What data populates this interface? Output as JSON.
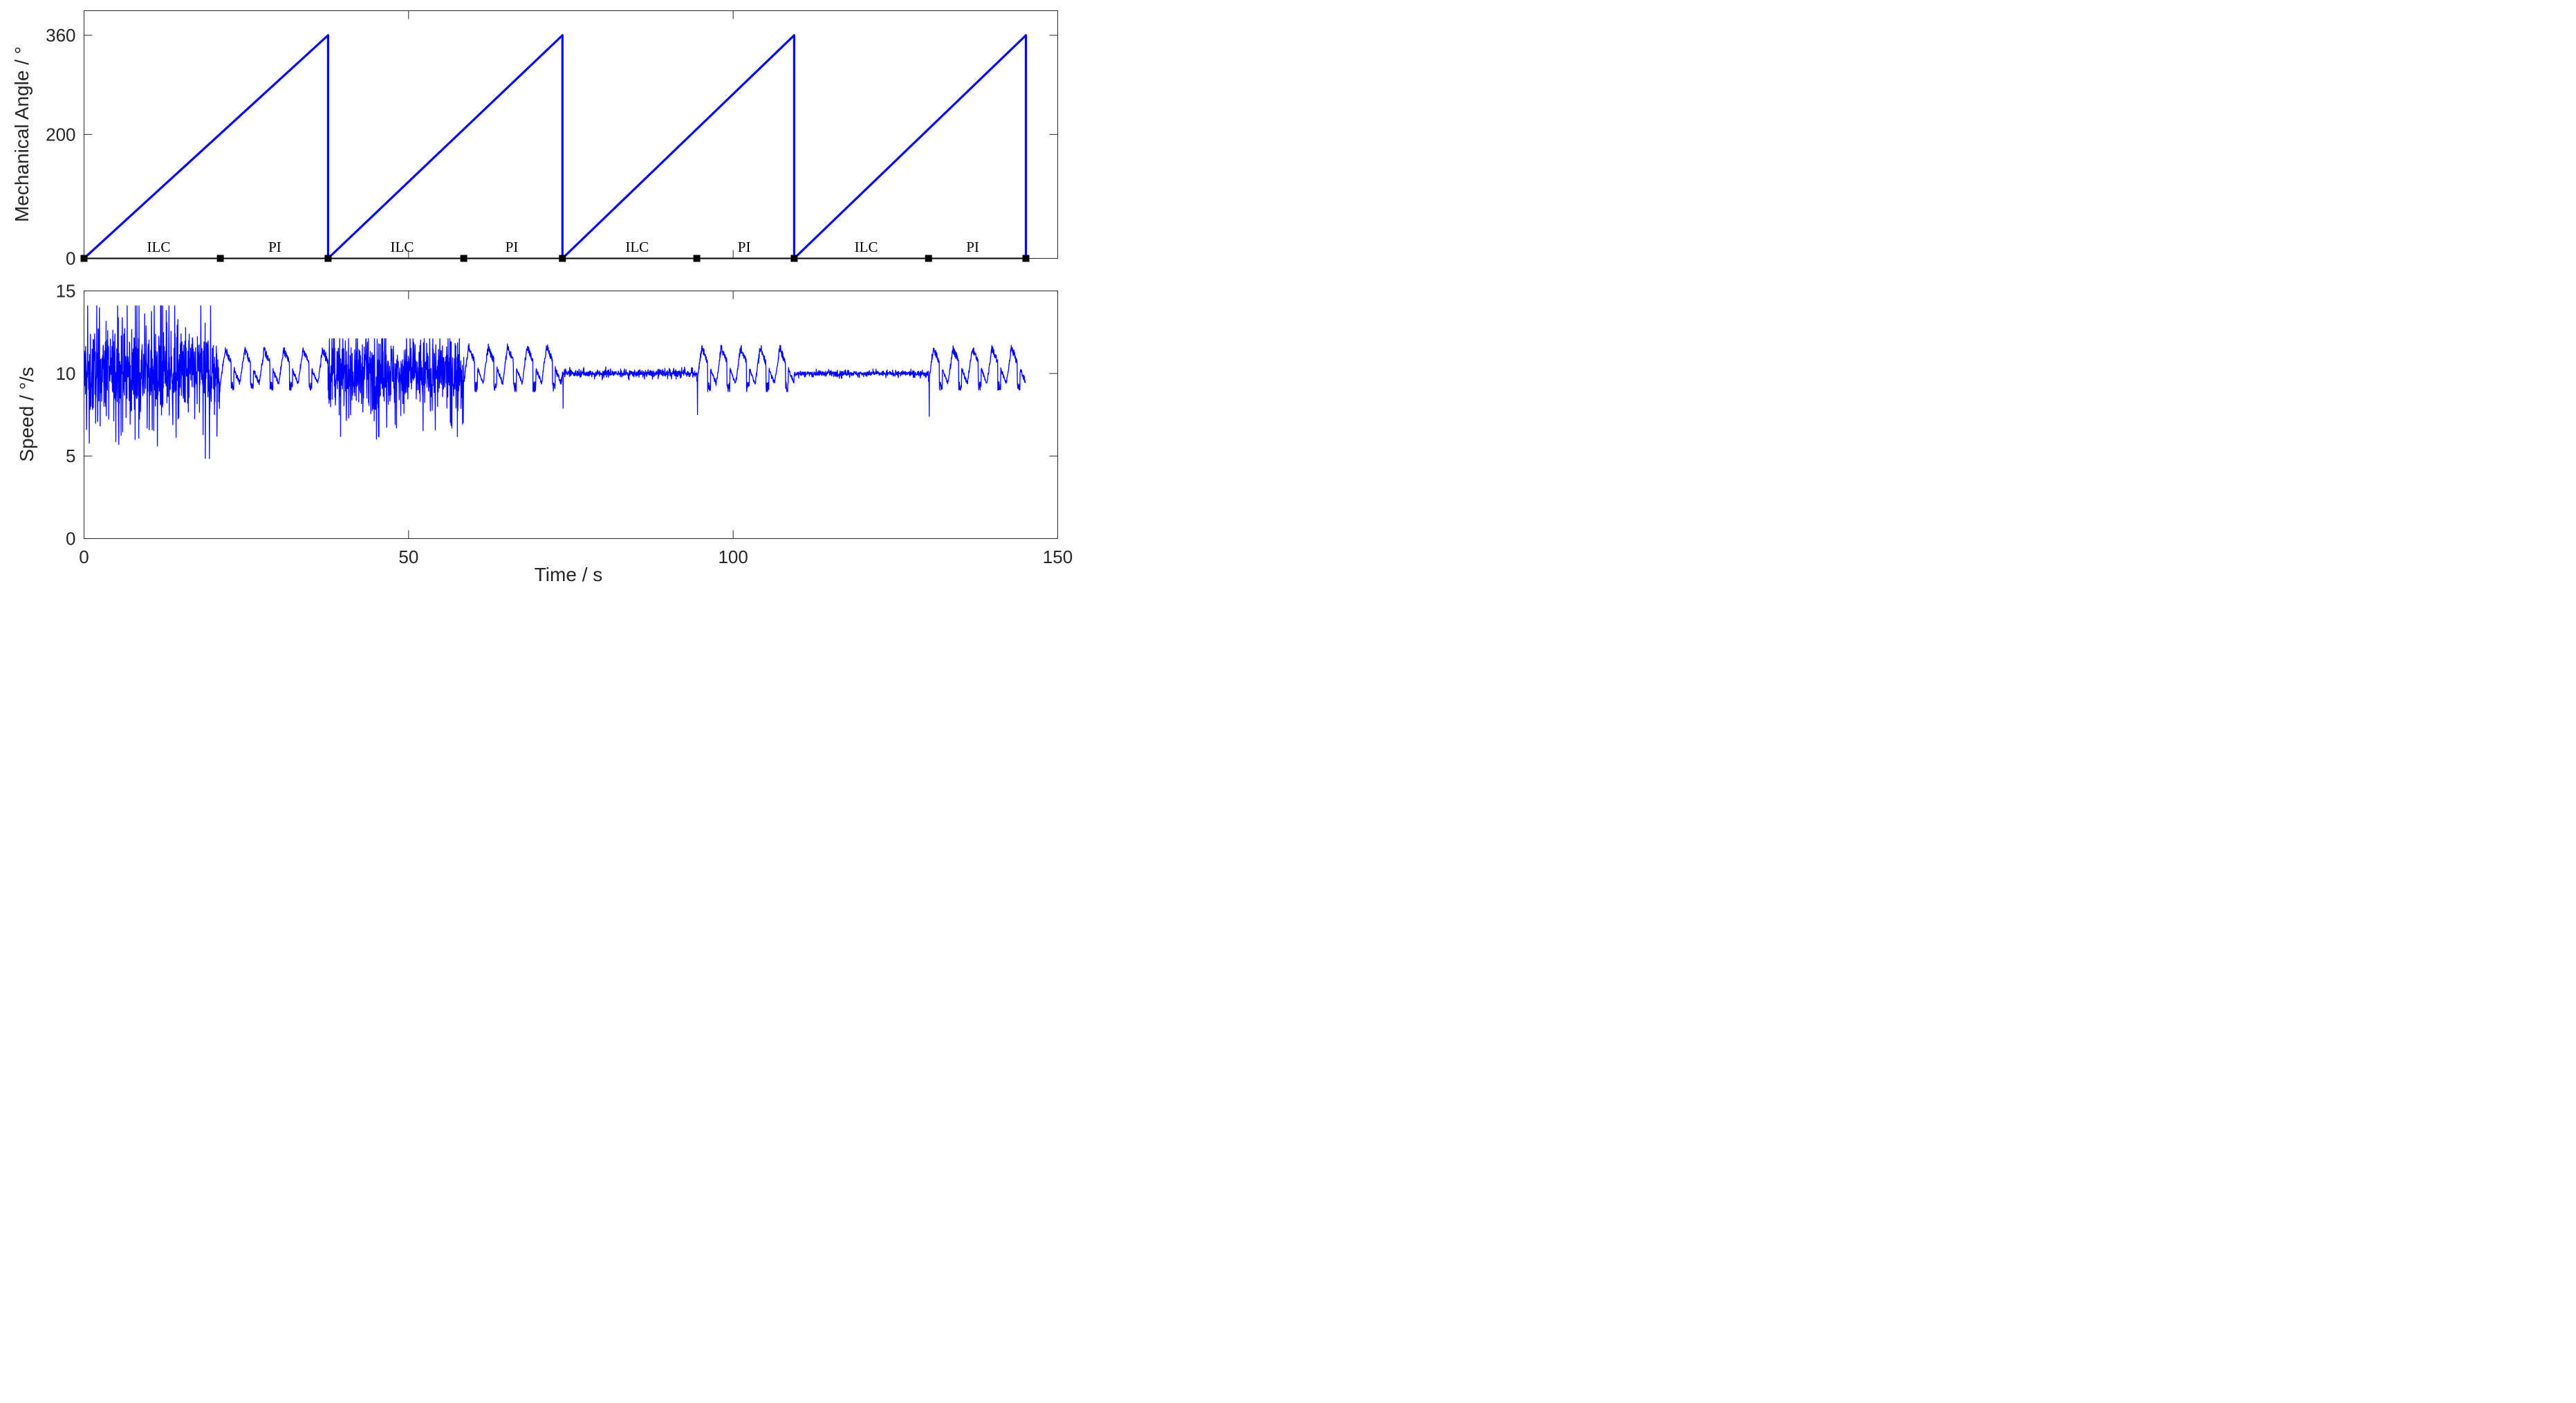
{
  "colors": {
    "signal": "#0000ff",
    "marker": "#000000",
    "axes": "#262626",
    "background": "#ffffff"
  },
  "chart_data": [
    {
      "type": "line",
      "ylabel": "Mechanical Angle / °",
      "xlim": [
        0,
        150
      ],
      "ylim": [
        0,
        360
      ],
      "yticks": [
        0,
        200,
        360
      ],
      "ytick_labels": [
        "0",
        "200",
        "360"
      ],
      "x_tick_labels_shown": false,
      "angle_signal": {
        "description_of_shape": "sawtooth ramps from 0 to 360 then reset",
        "points": [
          [
            0,
            0
          ],
          [
            37.6,
            360
          ],
          [
            37.6,
            0
          ],
          [
            73.7,
            360
          ],
          [
            73.7,
            0
          ],
          [
            109.4,
            360
          ],
          [
            109.4,
            0
          ],
          [
            145.1,
            360
          ],
          [
            145.1,
            0
          ]
        ]
      },
      "segment_markers_x": [
        0,
        21,
        37.6,
        58.5,
        73.7,
        94.4,
        109.4,
        130.1,
        145.1
      ],
      "segment_labels": [
        {
          "text": "ILC",
          "x": 11.5
        },
        {
          "text": "PI",
          "x": 29.4
        },
        {
          "text": "ILC",
          "x": 49.0
        },
        {
          "text": "PI",
          "x": 65.9
        },
        {
          "text": "ILC",
          "x": 85.2
        },
        {
          "text": "PI",
          "x": 101.7
        },
        {
          "text": "ILC",
          "x": 120.5
        },
        {
          "text": "PI",
          "x": 136.9
        }
      ],
      "grid": false,
      "box": true
    },
    {
      "type": "line",
      "ylabel": "Speed / °/s",
      "xlabel": "Time / s",
      "xlim": [
        0,
        150
      ],
      "ylim": [
        0,
        15
      ],
      "xticks": [
        0,
        50,
        100,
        150
      ],
      "xtick_labels": [
        "0",
        "50",
        "100",
        "150"
      ],
      "yticks": [
        0,
        5,
        10,
        15
      ],
      "ytick_labels": [
        "0",
        "5",
        "10",
        "15"
      ],
      "speed_signal": {
        "mean": 10,
        "segments": [
          {
            "x0": 0,
            "x1": 21,
            "mode": "ILC",
            "min": 4.8,
            "max": 14.1
          },
          {
            "x0": 21,
            "x1": 37.6,
            "mode": "PI",
            "min": 9.0,
            "max": 11.6,
            "oscillation_period": 3.0
          },
          {
            "x0": 37.6,
            "x1": 58.5,
            "mode": "ILC",
            "min": 6.0,
            "max": 12.1
          },
          {
            "x0": 58.5,
            "x1": 73.7,
            "mode": "PI",
            "min": 8.9,
            "max": 11.8,
            "oscillation_period": 3.0
          },
          {
            "x0": 73.7,
            "x1": 94.4,
            "mode": "ILC",
            "min": 9.6,
            "max": 10.4
          },
          {
            "x0": 94.4,
            "x1": 109.4,
            "mode": "PI",
            "min": 8.9,
            "max": 11.7,
            "oscillation_period": 3.0
          },
          {
            "x0": 109.4,
            "x1": 130.1,
            "mode": "ILC",
            "min": 9.7,
            "max": 10.3
          },
          {
            "x0": 130.1,
            "x1": 145.1,
            "mode": "PI",
            "min": 9.0,
            "max": 11.7,
            "oscillation_period": 3.0
          }
        ],
        "transient_dips": [
          {
            "x": 73.8,
            "y": 7.9
          },
          {
            "x": 94.5,
            "y": 7.5
          },
          {
            "x": 130.2,
            "y": 7.4
          }
        ]
      },
      "grid": false,
      "box": true
    }
  ]
}
